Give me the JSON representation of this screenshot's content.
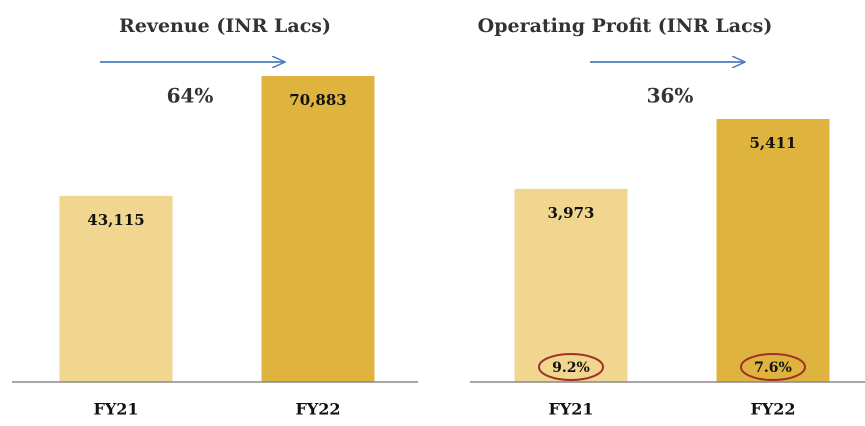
{
  "chart_data": [
    {
      "type": "bar",
      "title": "Revenue (INR Lacs)",
      "annotation": "64%",
      "categories": [
        "FY21",
        "FY22"
      ],
      "values": [
        43115,
        70883
      ],
      "value_labels": [
        "43,115",
        "70,883"
      ],
      "colors": [
        "#f0d68f",
        "#deb43f"
      ]
    },
    {
      "type": "bar",
      "title": "Operating Profit (INR Lacs)",
      "annotation": "36%",
      "categories": [
        "FY21",
        "FY22"
      ],
      "values": [
        3973,
        5411
      ],
      "value_labels": [
        "3,973",
        "5,411"
      ],
      "margin_labels": [
        "9.2%",
        "7.6%"
      ],
      "colors": [
        "#f0d68f",
        "#deb43f"
      ]
    }
  ]
}
